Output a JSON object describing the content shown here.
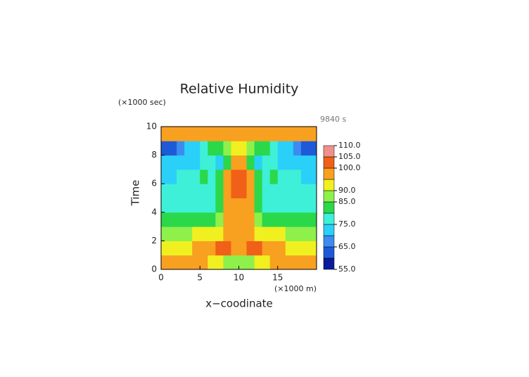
{
  "chart_data": {
    "type": "heatmap",
    "title": "Relative Humidity",
    "y_unit": "(×1000 sec)",
    "x_unit": "(×1000 m)",
    "time_stamp": "9840 s",
    "y_label": "Time",
    "x_label": "x−coodinate",
    "xlim": [
      0,
      20
    ],
    "xticks": [
      0,
      5,
      10,
      15
    ],
    "ylim": [
      0,
      10
    ],
    "yticks": [
      0,
      2,
      4,
      6,
      8,
      10
    ],
    "x": [
      0.5,
      1.5,
      2.5,
      3.5,
      4.5,
      5.5,
      6.5,
      7.5,
      8.5,
      9.5,
      10.5,
      11.5,
      12.5,
      13.5,
      14.5,
      15.5,
      16.5,
      17.5,
      18.5,
      19.5
    ],
    "y": [
      0.5,
      1.5,
      2.5,
      3.5,
      4.5,
      5.5,
      6.5,
      7.5,
      8.5,
      9.5
    ],
    "z": [
      [
        97,
        97,
        97,
        96,
        96,
        95,
        94,
        92,
        89,
        86,
        86,
        89,
        92,
        94,
        95,
        96,
        96,
        97,
        97,
        97
      ],
      [
        92,
        93,
        93,
        94,
        96,
        97,
        99,
        101,
        100,
        99,
        99,
        100,
        101,
        99,
        97,
        96,
        94,
        93,
        93,
        92
      ],
      [
        86,
        87,
        88,
        89,
        90,
        91,
        92,
        94,
        98,
        99,
        99,
        98,
        94,
        92,
        91,
        90,
        89,
        88,
        87,
        86
      ],
      [
        82,
        82,
        82,
        82,
        82,
        82,
        83,
        86,
        96,
        99,
        99,
        96,
        86,
        83,
        82,
        82,
        82,
        82,
        82,
        82
      ],
      [
        78,
        78,
        78,
        78,
        78,
        78,
        79,
        84,
        96,
        99,
        99,
        96,
        84,
        79,
        78,
        78,
        78,
        78,
        78,
        78
      ],
      [
        76,
        76,
        76,
        76,
        76,
        76,
        77,
        82,
        97,
        101,
        101,
        97,
        82,
        77,
        76,
        76,
        76,
        76,
        76,
        76
      ],
      [
        74,
        74,
        75,
        76,
        78,
        80,
        79,
        81,
        97,
        101,
        101,
        97,
        81,
        79,
        80,
        78,
        76,
        75,
        74,
        74
      ],
      [
        70,
        70,
        71,
        72,
        74,
        76,
        77,
        73,
        83,
        95,
        95,
        83,
        73,
        77,
        76,
        74,
        72,
        71,
        70,
        70
      ],
      [
        60,
        63,
        67,
        70,
        73,
        76,
        80,
        84,
        88,
        92,
        92,
        88,
        84,
        80,
        76,
        73,
        70,
        67,
        63,
        60
      ],
      [
        98,
        98,
        98,
        98,
        98,
        98,
        98,
        98,
        98,
        98,
        98,
        98,
        98,
        98,
        98,
        98,
        98,
        98,
        98,
        98
      ]
    ],
    "levels": [
      55,
      60,
      65,
      70,
      75,
      80,
      85,
      90,
      95,
      100,
      105,
      110
    ],
    "colors": [
      "#0a1a9a",
      "#1e5ad8",
      "#3c8cf0",
      "#2ad0f8",
      "#3ef0d8",
      "#2ad84a",
      "#8ef04a",
      "#f0f020",
      "#f8a020",
      "#f06018",
      "#f0908c"
    ],
    "colorbar_ticks": [
      {
        "value": 55,
        "label": "55.0"
      },
      {
        "value": 65,
        "label": "65.0"
      },
      {
        "value": 75,
        "label": "75.0"
      },
      {
        "value": 85,
        "label": "85.0"
      },
      {
        "value": 90,
        "label": "90.0"
      },
      {
        "value": 100,
        "label": "100.0"
      },
      {
        "value": 105,
        "label": "105.0"
      },
      {
        "value": 110,
        "label": "110.0"
      }
    ]
  }
}
